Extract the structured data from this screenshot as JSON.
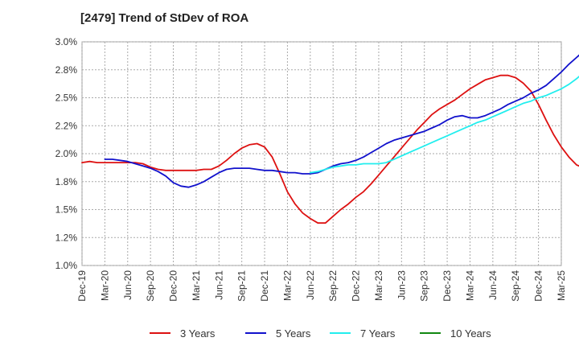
{
  "chart_data": {
    "type": "line",
    "title": "[2479]  Trend of StDev of ROA",
    "xlabel": "",
    "ylabel": "",
    "x_ticks": [
      "Dec-19",
      "Mar-20",
      "Jun-20",
      "Sep-20",
      "Dec-20",
      "Mar-21",
      "Jun-21",
      "Sep-21",
      "Dec-21",
      "Mar-22",
      "Jun-22",
      "Sep-22",
      "Dec-22",
      "Mar-23",
      "Jun-23",
      "Sep-23",
      "Dec-23",
      "Mar-24",
      "Jun-24",
      "Sep-24",
      "Dec-24",
      "Mar-25"
    ],
    "y_ticks": [
      "1.0%",
      "1.2%",
      "1.5%",
      "1.8%",
      "2.0%",
      "2.2%",
      "2.5%",
      "2.8%",
      "3.0%"
    ],
    "ylim": [
      1.0,
      3.0
    ],
    "grid": true,
    "legend_position": "bottom",
    "series": [
      {
        "name": "3 Years",
        "color": "#dd1111",
        "values": [
          1.92,
          1.93,
          1.92,
          1.92,
          1.92,
          1.92,
          1.92,
          1.92,
          1.91,
          1.88,
          1.86,
          1.85,
          1.85,
          1.85,
          1.85,
          1.85,
          1.86,
          1.86,
          1.89,
          1.94,
          2.0,
          2.05,
          2.08,
          2.09,
          2.06,
          1.97,
          1.82,
          1.66,
          1.55,
          1.47,
          1.42,
          1.38,
          1.38,
          1.44,
          1.5,
          1.55,
          1.61,
          1.66,
          1.73,
          1.81,
          1.89,
          1.97,
          2.05,
          2.13,
          2.21,
          2.28,
          2.35,
          2.4,
          2.44,
          2.48,
          2.53,
          2.58,
          2.62,
          2.66,
          2.68,
          2.7,
          2.7,
          2.68,
          2.63,
          2.56,
          2.44,
          2.3,
          2.17,
          2.06,
          1.97,
          1.9,
          1.87,
          1.87,
          1.91
        ]
      },
      {
        "name": "5 Years",
        "color": "#1111cc",
        "values": [
          null,
          null,
          null,
          1.95,
          1.95,
          1.94,
          1.93,
          1.91,
          1.89,
          1.87,
          1.84,
          1.8,
          1.74,
          1.71,
          1.7,
          1.72,
          1.75,
          1.79,
          1.83,
          1.86,
          1.87,
          1.87,
          1.87,
          1.86,
          1.85,
          1.85,
          1.84,
          1.83,
          1.83,
          1.82,
          1.82,
          1.83,
          1.86,
          1.89,
          1.91,
          1.92,
          1.94,
          1.97,
          2.01,
          2.05,
          2.09,
          2.12,
          2.14,
          2.16,
          2.18,
          2.2,
          2.23,
          2.26,
          2.3,
          2.33,
          2.34,
          2.32,
          2.32,
          2.34,
          2.37,
          2.4,
          2.44,
          2.47,
          2.5,
          2.54,
          2.57,
          2.61,
          2.67,
          2.73,
          2.8,
          2.86,
          2.92,
          2.96
        ]
      },
      {
        "name": "7 Years",
        "color": "#22eeee",
        "values": [
          null,
          null,
          null,
          null,
          null,
          null,
          null,
          null,
          null,
          null,
          null,
          null,
          null,
          null,
          null,
          null,
          null,
          null,
          null,
          null,
          null,
          null,
          null,
          null,
          null,
          null,
          null,
          null,
          null,
          null,
          1.83,
          1.84,
          1.86,
          1.88,
          1.89,
          1.9,
          1.9,
          1.91,
          1.91,
          1.91,
          1.92,
          1.95,
          1.98,
          2.01,
          2.04,
          2.07,
          2.1,
          2.13,
          2.16,
          2.19,
          2.22,
          2.25,
          2.28,
          2.3,
          2.33,
          2.36,
          2.39,
          2.42,
          2.45,
          2.47,
          2.5,
          2.52,
          2.55,
          2.58,
          2.62,
          2.67,
          2.73,
          2.81
        ]
      },
      {
        "name": "10 Years",
        "color": "#118811",
        "values": []
      }
    ]
  }
}
